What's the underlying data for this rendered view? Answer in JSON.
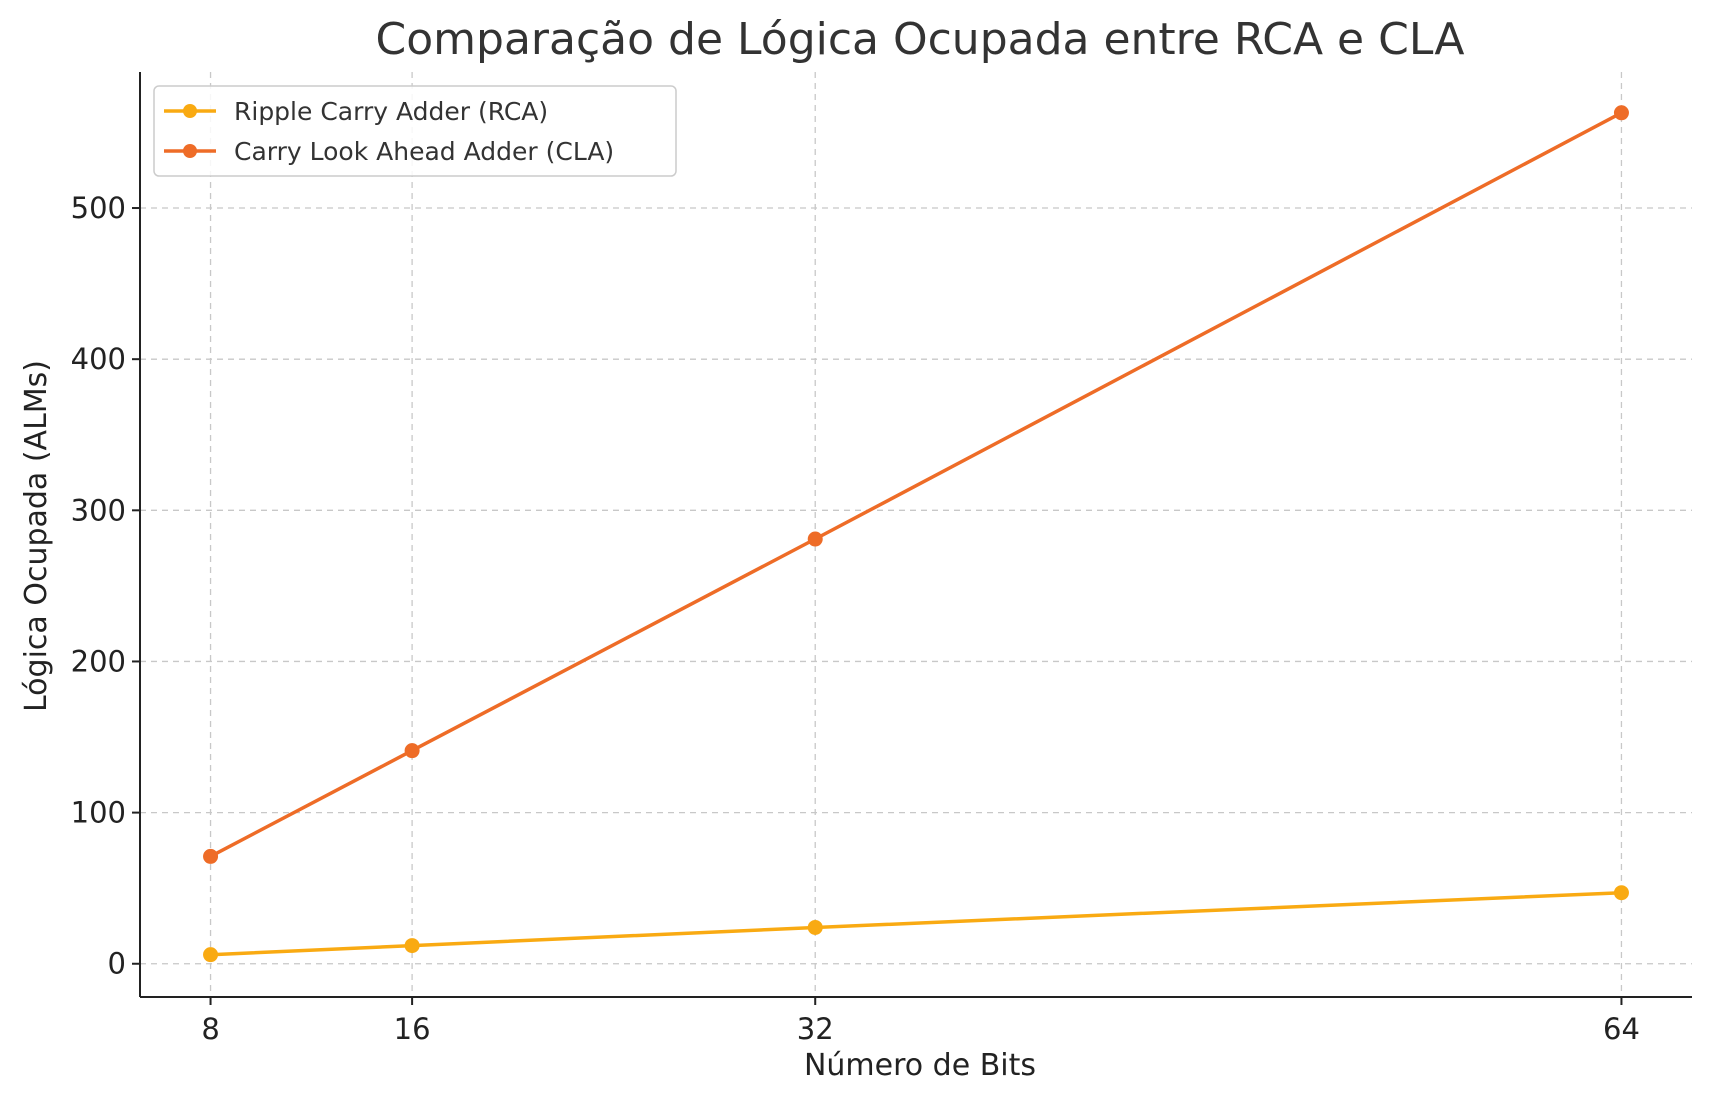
{
  "chart_data": {
    "type": "line",
    "title": "Comparação de Lógica Ocupada entre RCA e CLA",
    "xlabel": "Número de Bits",
    "ylabel": "Lógica Ocupada (ALMs)",
    "x": [
      8,
      16,
      32,
      64
    ],
    "xticks": [
      "8",
      "16",
      "32",
      "64"
    ],
    "yticks": [
      "0",
      "100",
      "200",
      "300",
      "400",
      "500"
    ],
    "xlim": [
      5.2,
      66.8
    ],
    "ylim": [
      -22,
      590
    ],
    "grid": true,
    "legend_position": "top-left",
    "series": [
      {
        "name": "Ripple Carry Adder (RCA)",
        "color": "#F9AA12",
        "values": [
          6,
          12,
          24,
          47
        ]
      },
      {
        "name": "Carry Look Ahead Adder (CLA)",
        "color": "#EE6C27",
        "values": [
          71,
          141,
          281,
          563
        ]
      }
    ]
  }
}
